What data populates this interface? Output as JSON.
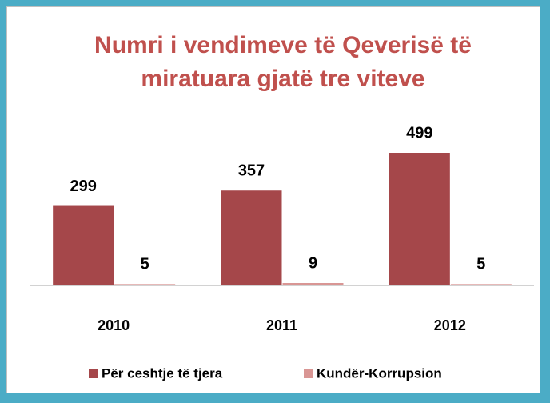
{
  "chart_data": {
    "type": "bar",
    "title": "Numri i vendimeve të Qeverisë të miratuara gjatë tre viteve",
    "categories": [
      "2010",
      "2011",
      "2012"
    ],
    "series": [
      {
        "name": "Për ceshtje të tjera",
        "color": "#a5474a",
        "values": [
          299,
          357,
          499
        ]
      },
      {
        "name": "Kundër-Korrupsion",
        "color": "#d99694",
        "values": [
          5,
          9,
          5
        ]
      }
    ],
    "legend": "bottom"
  }
}
